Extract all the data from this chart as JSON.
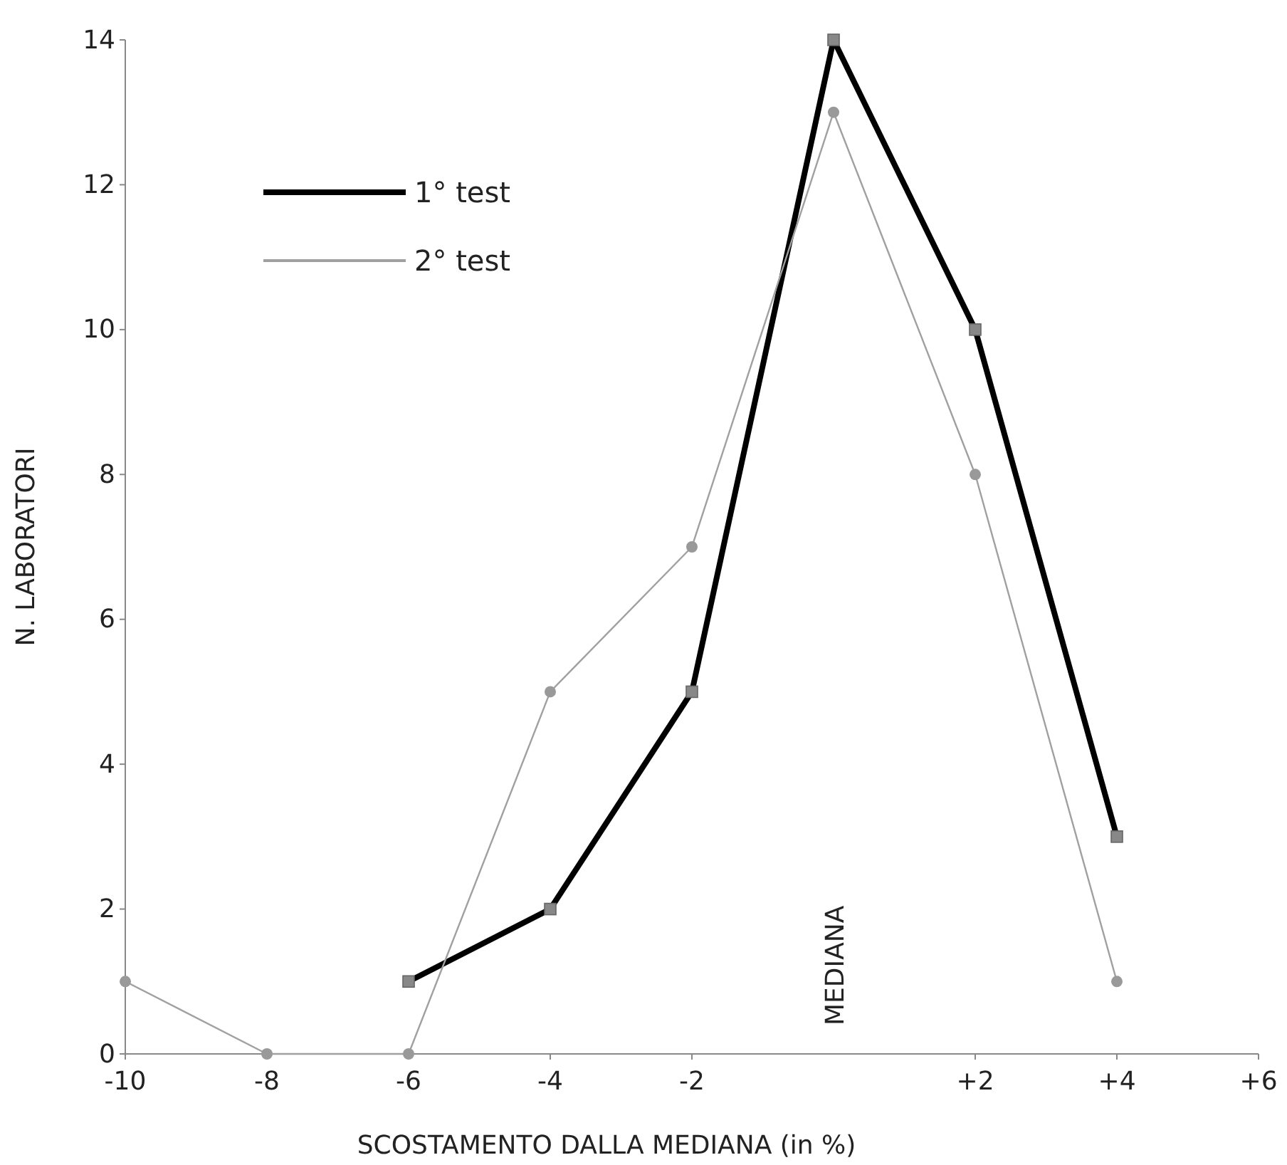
{
  "chart_data": {
    "type": "line",
    "xlabel": "SCOSTAMENTO DALLA MEDIANA (in %)",
    "ylabel": "N. LABORATORI",
    "xlim": [
      -10,
      6
    ],
    "xticks": [
      -10,
      -8,
      -6,
      -4,
      -2,
      {
        "value": 2,
        "label": "+2"
      },
      {
        "value": 4,
        "label": "+4"
      },
      {
        "value": 6,
        "label": "+6"
      }
    ],
    "ylim": [
      0,
      14
    ],
    "yticks": [
      0,
      2,
      4,
      6,
      8,
      10,
      12,
      14
    ],
    "grid": false,
    "legend": "top left",
    "series": [
      {
        "name": "1° test",
        "color": "#000000",
        "marker": "square",
        "x": [
          -6,
          -4,
          -2,
          0,
          2,
          4
        ],
        "values": [
          1,
          2,
          5,
          14,
          10,
          3
        ]
      },
      {
        "name": "2° test",
        "color": "#a0a0a0",
        "marker": "circle",
        "x": [
          -10,
          -8,
          -6,
          -4,
          -2,
          0,
          2,
          4
        ],
        "values": [
          1,
          0,
          0,
          5,
          7,
          13,
          8,
          1
        ]
      }
    ],
    "annotations": [
      "MEDIANA"
    ]
  }
}
